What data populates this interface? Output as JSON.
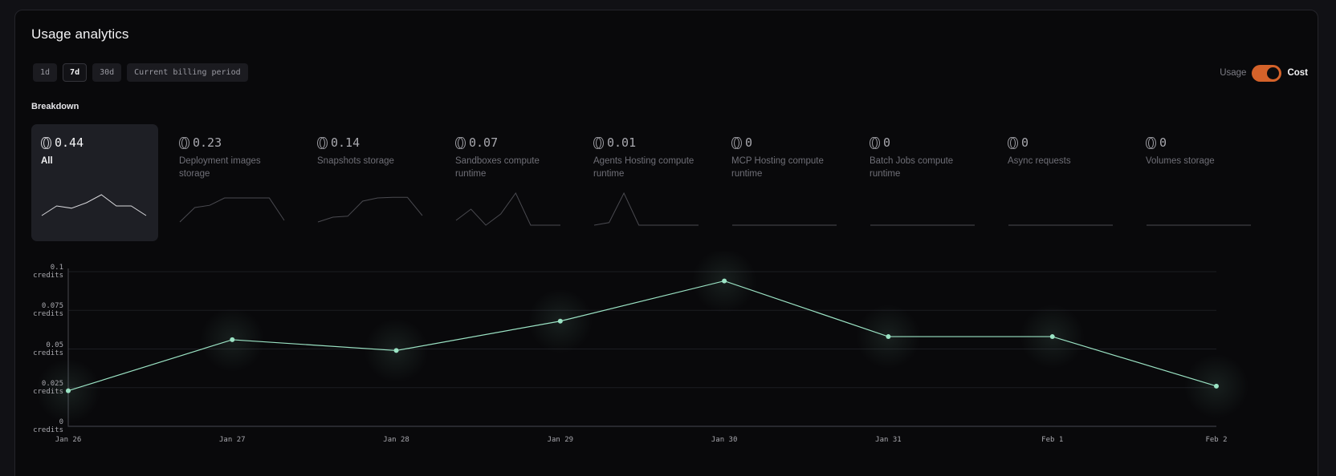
{
  "header": {
    "title": "Usage analytics"
  },
  "range": {
    "options": [
      {
        "label": "1d",
        "active": false
      },
      {
        "label": "7d",
        "active": true
      },
      {
        "label": "30d",
        "active": false
      },
      {
        "label": "Current billing period",
        "active": false
      }
    ]
  },
  "toggle": {
    "left_label": "Usage",
    "right_label": "Cost",
    "state": "Cost",
    "color": "#d4622a"
  },
  "breakdown": {
    "label": "Breakdown",
    "icon": "coin-icon",
    "cards": [
      {
        "value": "0.44",
        "label": "All",
        "selected": true,
        "spark": [
          0.25,
          0.55,
          0.48,
          0.65,
          0.9,
          0.55,
          0.55,
          0.25
        ]
      },
      {
        "value": "0.23",
        "label": "Deployment images storage",
        "selected": false,
        "spark": [
          0.1,
          0.55,
          0.62,
          0.85,
          0.85,
          0.85,
          0.85,
          0.15
        ]
      },
      {
        "value": "0.14",
        "label": "Snapshots storage",
        "selected": false,
        "spark": [
          0.1,
          0.25,
          0.28,
          0.75,
          0.85,
          0.87,
          0.87,
          0.3
        ]
      },
      {
        "value": "0.07",
        "label": "Sandboxes compute runtime",
        "selected": false,
        "spark": [
          0.15,
          0.5,
          0.0,
          0.35,
          1.0,
          0.0,
          0.0,
          0.0
        ]
      },
      {
        "value": "0.01",
        "label": "Agents Hosting compute runtime",
        "selected": false,
        "spark": [
          0.0,
          0.08,
          1.0,
          0.0,
          0.0,
          0.0,
          0.0,
          0.0
        ]
      },
      {
        "value": "0",
        "label": "MCP Hosting compute runtime",
        "selected": false,
        "spark": [
          0,
          0,
          0,
          0,
          0,
          0,
          0,
          0
        ]
      },
      {
        "value": "0",
        "label": "Batch Jobs compute runtime",
        "selected": false,
        "spark": [
          0,
          0,
          0,
          0,
          0,
          0,
          0,
          0
        ]
      },
      {
        "value": "0",
        "label": "Async requests",
        "selected": false,
        "spark": [
          0,
          0,
          0,
          0,
          0,
          0,
          0,
          0
        ]
      },
      {
        "value": "0",
        "label": "Volumes storage",
        "selected": false,
        "spark": [
          0,
          0,
          0,
          0,
          0,
          0,
          0,
          0
        ]
      }
    ]
  },
  "chart_data": {
    "type": "line",
    "title": "",
    "xlabel": "",
    "ylabel": "credits",
    "categories": [
      "Jan 26",
      "Jan 27",
      "Jan 28",
      "Jan 29",
      "Jan 30",
      "Jan 31",
      "Feb 1",
      "Feb 2"
    ],
    "series": [
      {
        "name": "All",
        "values": [
          0.023,
          0.056,
          0.049,
          0.068,
          0.094,
          0.058,
          0.058,
          0.026
        ],
        "color": "#9be3c4"
      }
    ],
    "yticks": [
      {
        "value": 0.1,
        "label": "0.1",
        "unit": "credits"
      },
      {
        "value": 0.075,
        "label": "0.075",
        "unit": "credits"
      },
      {
        "value": 0.05,
        "label": "0.05",
        "unit": "credits"
      },
      {
        "value": 0.025,
        "label": "0.025",
        "unit": "credits"
      },
      {
        "value": 0,
        "label": "0",
        "unit": "credits"
      }
    ],
    "ylim": [
      0,
      0.1
    ],
    "grid": true,
    "legend": "none"
  }
}
